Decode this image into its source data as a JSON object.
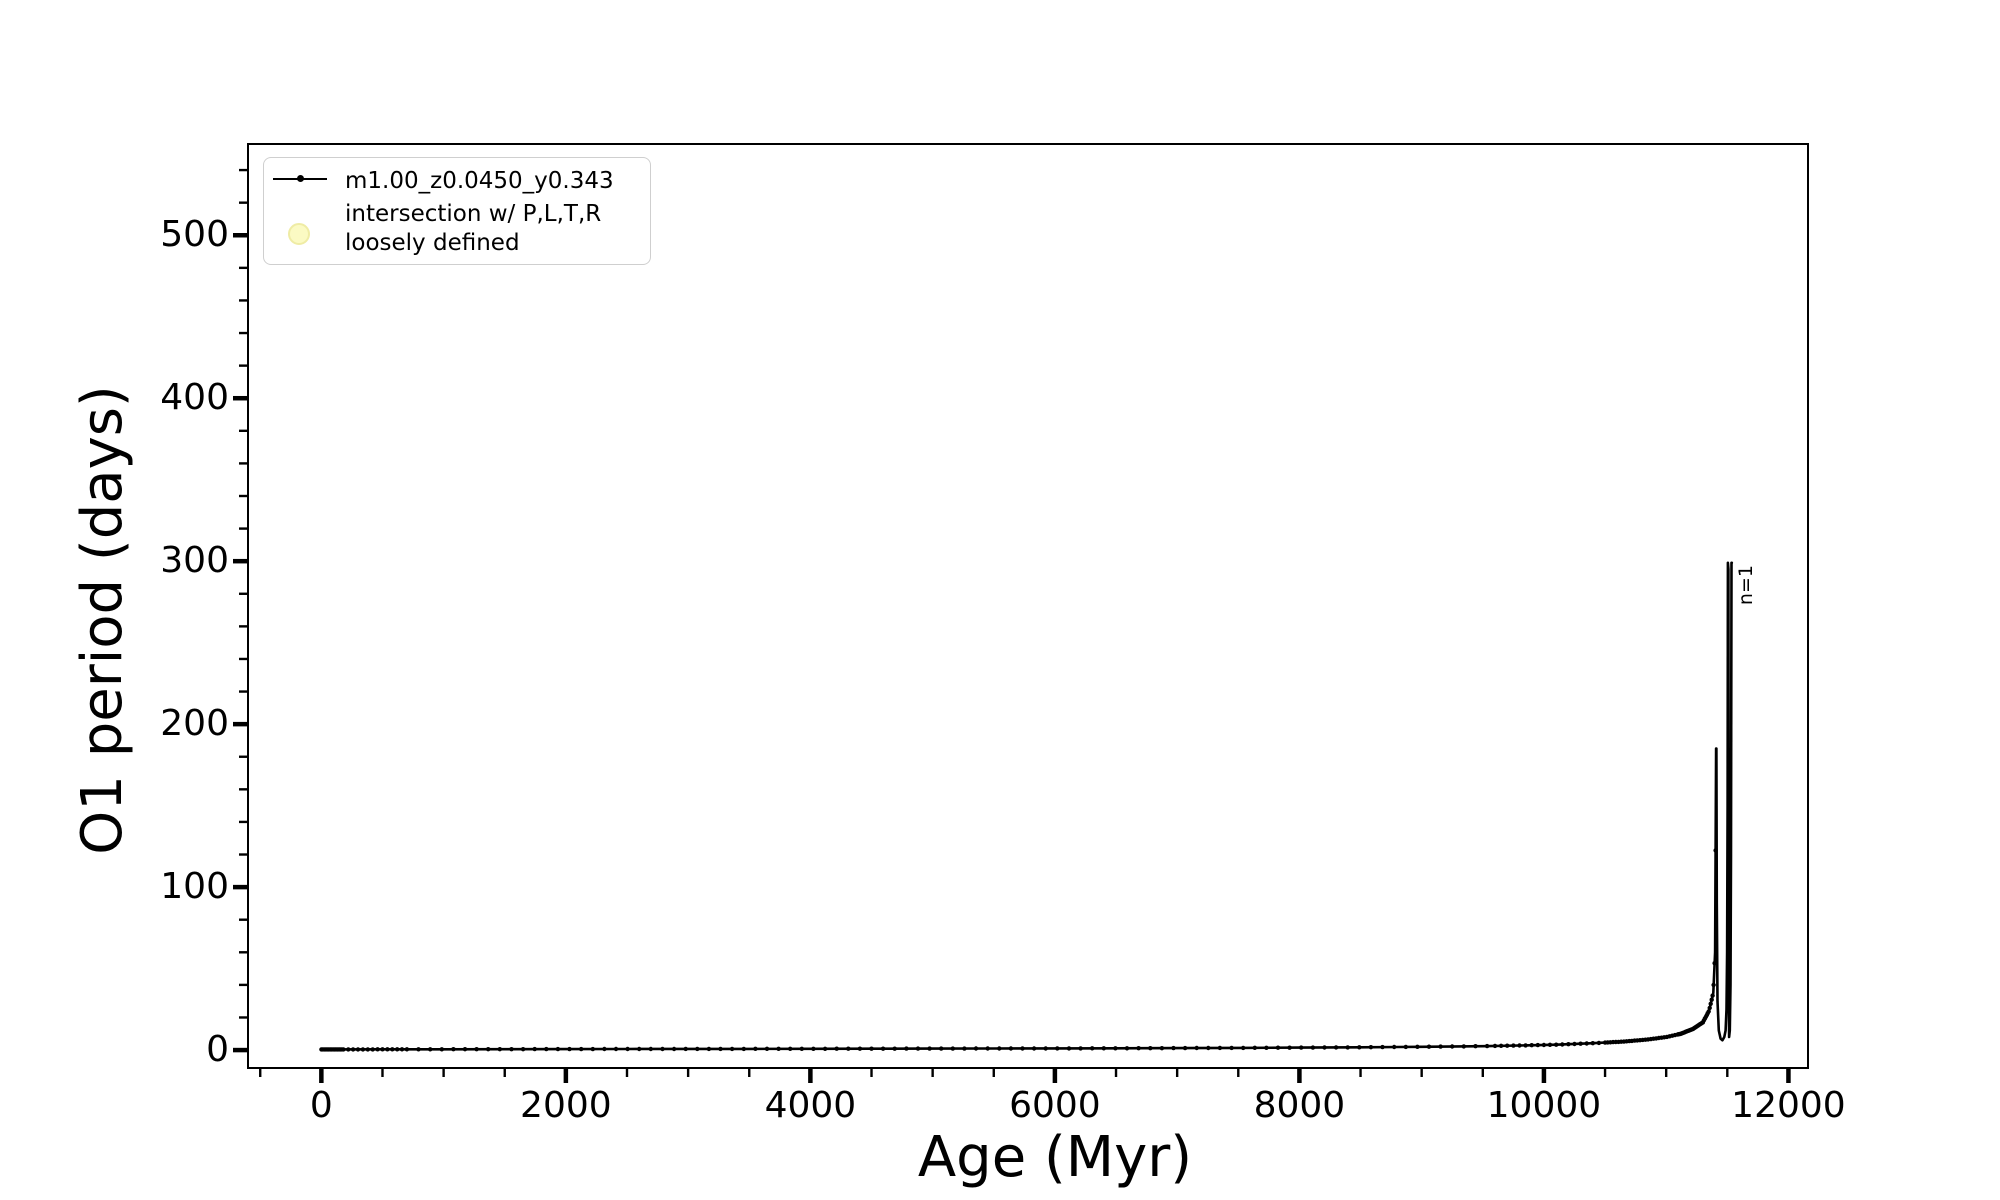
{
  "figure": {
    "background": "#ffffff",
    "text_color": "#000000",
    "spine_color": "#000000"
  },
  "chart_data": {
    "type": "line",
    "title": "",
    "xlabel": "Age (Myr)",
    "ylabel": "O1 period (days)",
    "xlim": [
      -600,
      12160
    ],
    "ylim": [
      -11,
      556
    ],
    "x_major_ticks": [
      0,
      2000,
      4000,
      6000,
      8000,
      10000,
      12000
    ],
    "x_minor_step": 500,
    "y_major_ticks": [
      0,
      100,
      200,
      300,
      400,
      500
    ],
    "y_minor_step": 20,
    "grid": false,
    "legend_position": "upper left",
    "series": [
      {
        "name": "m1.00_z0.0450_y0.343",
        "color": "#000000",
        "marker": "point",
        "marker_size": 2.2,
        "points": [
          [
            0,
            0.4
          ],
          [
            500,
            0.45
          ],
          [
            1000,
            0.5
          ],
          [
            1500,
            0.55
          ],
          [
            2000,
            0.6
          ],
          [
            2500,
            0.65
          ],
          [
            3000,
            0.7
          ],
          [
            3500,
            0.75
          ],
          [
            4000,
            0.8
          ],
          [
            4500,
            0.85
          ],
          [
            5000,
            0.9
          ],
          [
            5500,
            0.95
          ],
          [
            6000,
            1.0
          ],
          [
            6500,
            1.1
          ],
          [
            7000,
            1.2
          ],
          [
            7500,
            1.35
          ],
          [
            8000,
            1.5
          ],
          [
            8500,
            1.7
          ],
          [
            9000,
            2.0
          ],
          [
            9500,
            2.4
          ],
          [
            9800,
            2.8
          ],
          [
            10100,
            3.3
          ],
          [
            10400,
            4.2
          ],
          [
            10650,
            5.2
          ],
          [
            10850,
            6.5
          ],
          [
            11000,
            8
          ],
          [
            11120,
            10
          ],
          [
            11220,
            13
          ],
          [
            11300,
            17
          ],
          [
            11350,
            24
          ],
          [
            11385,
            35
          ],
          [
            11400,
            60
          ],
          [
            11408,
            185
          ],
          [
            11411,
            185
          ],
          [
            11414,
            90
          ],
          [
            11420,
            30
          ],
          [
            11430,
            12
          ],
          [
            11445,
            7
          ],
          [
            11460,
            6
          ],
          [
            11475,
            8
          ],
          [
            11486,
            12
          ],
          [
            11493,
            25
          ],
          [
            11498,
            60
          ],
          [
            11502,
            150
          ],
          [
            11505,
            299
          ],
          [
            11509,
            295
          ],
          [
            11512,
            40
          ],
          [
            11515,
            8
          ],
          [
            11520,
            12
          ],
          [
            11526,
            40
          ],
          [
            11530,
            120
          ],
          [
            11534,
            299
          ],
          [
            11537,
            299
          ]
        ],
        "marker_zones": [
          {
            "from": 0,
            "to": 180,
            "step": 12
          },
          {
            "from": 180,
            "to": 700,
            "step": 40
          },
          {
            "from": 700,
            "to": 9600,
            "step": 95
          },
          {
            "from": 9600,
            "to": 10500,
            "step": 50
          },
          {
            "from": 10500,
            "to": 11100,
            "step": 22
          },
          {
            "from": 11100,
            "to": 11410,
            "step": 8
          }
        ]
      },
      {
        "name": "intersection w/ P,L,T,R\nloosely defined",
        "color": "#fbfac3",
        "edge_color": "#efeca5",
        "marker": "circle",
        "points": []
      }
    ],
    "annotation": {
      "text": "n=1",
      "age": 11537,
      "period": 299
    }
  },
  "legend": {
    "entries": [
      {
        "label": "m1.00_z0.0450_y0.343",
        "marker": "line-dot",
        "color": "#000000"
      },
      {
        "label": "intersection w/ P,L,T,R\nloosely defined",
        "marker": "circle",
        "fill": "#fbfac3",
        "edge": "#efeca5"
      }
    ]
  }
}
